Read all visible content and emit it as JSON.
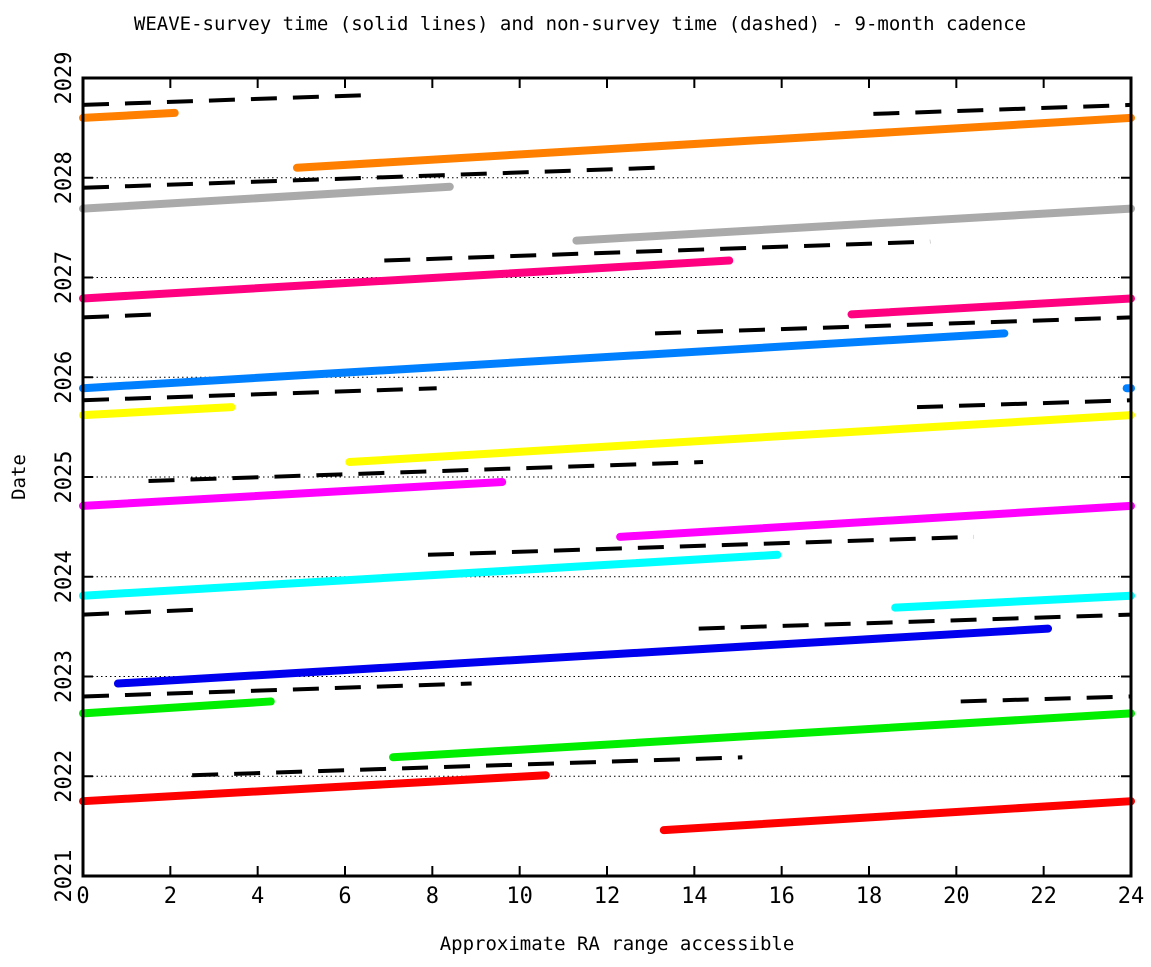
{
  "chart_data": {
    "type": "line",
    "title": "WEAVE-survey time (solid lines) and non-survey time (dashed) - 9-month cadence",
    "xlabel": "Approximate RA range accessible",
    "ylabel": "Date",
    "xlim": [
      0,
      24
    ],
    "ylim": [
      2021,
      2029
    ],
    "x_ticks": [
      "0",
      "2",
      "4",
      "6",
      "8",
      "10",
      "12",
      "14",
      "16",
      "18",
      "20",
      "22",
      "24"
    ],
    "y_ticks": [
      "2021",
      "2022",
      "2023",
      "2024",
      "2025",
      "2026",
      "2027",
      "2028",
      "2029"
    ],
    "dotted_gridlines_at": [
      2022,
      2023,
      2024,
      2025,
      2026,
      2027,
      2028
    ],
    "series": [
      {
        "color": "#ff0000",
        "style": "solid",
        "segments": [
          [
            [
              0,
              2021.75
            ],
            [
              10.6,
              2022.01
            ]
          ],
          [
            [
              13.3,
              2021.46
            ],
            [
              24,
              2021.75
            ]
          ]
        ]
      },
      {
        "color": "#00ee00",
        "style": "solid",
        "segments": [
          [
            [
              0,
              2022.63
            ],
            [
              4.3,
              2022.75
            ]
          ],
          [
            [
              7.1,
              2022.19
            ],
            [
              24,
              2022.63
            ]
          ]
        ]
      },
      {
        "color": "#0000ee",
        "style": "solid",
        "segments": [
          [
            [
              0.8,
              2022.93
            ],
            [
              22.1,
              2023.48
            ]
          ]
        ]
      },
      {
        "color": "#00ffff",
        "style": "solid",
        "segments": [
          [
            [
              0,
              2023.81
            ],
            [
              15.9,
              2024.22
            ]
          ],
          [
            [
              18.6,
              2023.69
            ],
            [
              24,
              2023.81
            ]
          ]
        ]
      },
      {
        "color": "#ff00ff",
        "style": "solid",
        "segments": [
          [
            [
              0,
              2024.71
            ],
            [
              9.6,
              2024.95
            ]
          ],
          [
            [
              12.3,
              2024.4
            ],
            [
              24,
              2024.71
            ]
          ]
        ]
      },
      {
        "color": "#ffff00",
        "style": "solid",
        "segments": [
          [
            [
              0,
              2025.62
            ],
            [
              3.4,
              2025.7
            ]
          ],
          [
            [
              6.1,
              2025.15
            ],
            [
              24,
              2025.62
            ]
          ]
        ]
      },
      {
        "color": "#0080ff",
        "style": "solid",
        "segments": [
          [
            [
              0,
              2025.89
            ],
            [
              21.1,
              2026.44
            ]
          ],
          [
            [
              23.9,
              2025.89
            ],
            [
              24,
              2025.89
            ]
          ]
        ]
      },
      {
        "color": "#ff0080",
        "style": "solid",
        "segments": [
          [
            [
              0,
              2026.79
            ],
            [
              14.8,
              2027.17
            ]
          ],
          [
            [
              17.6,
              2026.63
            ],
            [
              24,
              2026.79
            ]
          ]
        ]
      },
      {
        "color": "#aaaaaa",
        "style": "solid",
        "segments": [
          [
            [
              0,
              2027.69
            ],
            [
              8.4,
              2027.91
            ]
          ],
          [
            [
              11.3,
              2027.37
            ],
            [
              24,
              2027.69
            ]
          ]
        ]
      },
      {
        "color": "#ff8000",
        "style": "solid",
        "segments": [
          [
            [
              0,
              2028.6
            ],
            [
              2.1,
              2028.65
            ]
          ],
          [
            [
              4.9,
              2028.1
            ],
            [
              24,
              2028.6
            ]
          ]
        ]
      },
      {
        "color": "#000000",
        "style": "dashed",
        "segments": [
          [
            [
              2.5,
              2022.01
            ],
            [
              15.1,
              2022.19
            ]
          ],
          [
            [
              0,
              2022.8
            ],
            [
              8.9,
              2022.93
            ]
          ],
          [
            [
              20.1,
              2022.75
            ],
            [
              24,
              2022.8
            ]
          ],
          [
            [
              14.1,
              2023.48
            ],
            [
              24,
              2023.62
            ]
          ],
          [
            [
              0,
              2023.62
            ],
            [
              2.6,
              2023.67
            ]
          ],
          [
            [
              7.9,
              2024.22
            ],
            [
              20.4,
              2024.4
            ]
          ],
          [
            [
              1.5,
              2024.96
            ],
            [
              14.2,
              2025.15
            ]
          ],
          [
            [
              0,
              2025.77
            ],
            [
              8.1,
              2025.89
            ]
          ],
          [
            [
              19.1,
              2025.7
            ],
            [
              24,
              2025.77
            ]
          ],
          [
            [
              13.1,
              2026.44
            ],
            [
              24,
              2026.6
            ]
          ],
          [
            [
              0,
              2026.6
            ],
            [
              1.7,
              2026.63
            ]
          ],
          [
            [
              6.9,
              2027.17
            ],
            [
              19.4,
              2027.36
            ]
          ],
          [
            [
              0,
              2027.9
            ],
            [
              13.1,
              2028.1
            ]
          ],
          [
            [
              18.1,
              2028.64
            ],
            [
              24,
              2028.73
            ]
          ],
          [
            [
              0,
              2028.73
            ],
            [
              6.6,
              2028.83
            ]
          ]
        ]
      }
    ]
  }
}
